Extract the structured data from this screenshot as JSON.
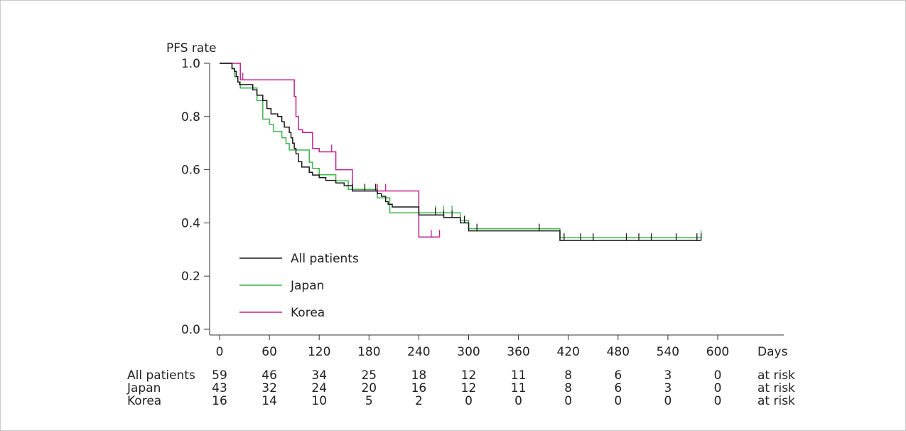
{
  "chart_data": {
    "type": "line",
    "title": "",
    "ylabel": "PFS rate",
    "xlabel": "Days",
    "xlim": [
      0,
      600
    ],
    "ylim": [
      0,
      1
    ],
    "x_ticks": [
      0,
      60,
      120,
      180,
      240,
      300,
      360,
      420,
      480,
      540,
      600
    ],
    "y_ticks": [
      "0.0",
      "0.2",
      "0.4",
      "0.6",
      "0.8",
      "1.0"
    ],
    "grid": false,
    "legend_position": "lower-left",
    "series": [
      {
        "name": "All patients",
        "color": "#1a1a1a",
        "x": [
          0,
          15,
          18,
          20,
          22,
          24,
          40,
          45,
          52,
          57,
          62,
          70,
          75,
          78,
          84,
          86,
          88,
          90,
          92,
          95,
          99,
          108,
          112,
          120,
          128,
          140,
          150,
          160,
          190,
          195,
          200,
          203,
          208,
          240,
          270,
          290,
          300,
          410,
          580
        ],
        "y": [
          1.0,
          0.98,
          0.97,
          0.95,
          0.93,
          0.92,
          0.9,
          0.88,
          0.86,
          0.83,
          0.81,
          0.8,
          0.78,
          0.76,
          0.74,
          0.72,
          0.7,
          0.68,
          0.66,
          0.63,
          0.61,
          0.59,
          0.58,
          0.57,
          0.56,
          0.55,
          0.54,
          0.52,
          0.51,
          0.5,
          0.48,
          0.47,
          0.46,
          0.43,
          0.42,
          0.4,
          0.37,
          0.334,
          0.334
        ],
        "censored": [
          160,
          175,
          188,
          260,
          270,
          280,
          295,
          310,
          385,
          415,
          435,
          450,
          490,
          505,
          520,
          550,
          575,
          580
        ]
      },
      {
        "name": "Japan",
        "color": "#3cb44b",
        "x": [
          0,
          15,
          18,
          22,
          25,
          45,
          52,
          60,
          65,
          75,
          80,
          84,
          108,
          112,
          120,
          140,
          155,
          190,
          205,
          240,
          290,
          300,
          410,
          580
        ],
        "y": [
          1.0,
          0.98,
          0.95,
          0.93,
          0.907,
          0.86,
          0.79,
          0.77,
          0.744,
          0.72,
          0.698,
          0.674,
          0.628,
          0.605,
          0.581,
          0.558,
          0.526,
          0.494,
          0.438,
          0.438,
          0.41,
          0.378,
          0.344,
          0.344
        ],
        "censored": [
          260,
          270,
          280,
          580
        ]
      },
      {
        "name": "Korea",
        "color": "#c2208f",
        "x": [
          0,
          25,
          30,
          90,
          92,
          95,
          100,
          112,
          120,
          130,
          140,
          160,
          240,
          265
        ],
        "y": [
          1.0,
          0.938,
          0.938,
          0.875,
          0.8,
          0.75,
          0.74,
          0.68,
          0.667,
          0.667,
          0.6,
          0.52,
          0.347,
          0.347
        ],
        "censored": [
          28,
          135,
          160,
          190,
          200,
          255,
          265
        ]
      }
    ],
    "risk_table": {
      "suffix": "at risk",
      "rows": [
        {
          "label": "All patients",
          "values": [
            "59",
            "46",
            "34",
            "25",
            "18",
            "12",
            "11",
            "8",
            "6",
            "3",
            "0"
          ]
        },
        {
          "label": "Japan",
          "values": [
            "43",
            "32",
            "24",
            "20",
            "16",
            "12",
            "11",
            "8",
            "6",
            "3",
            "0"
          ]
        },
        {
          "label": "Korea",
          "values": [
            "16",
            "14",
            "10",
            "5",
            "2",
            "0",
            "0",
            "0",
            "0",
            "0",
            "0"
          ]
        }
      ]
    }
  }
}
